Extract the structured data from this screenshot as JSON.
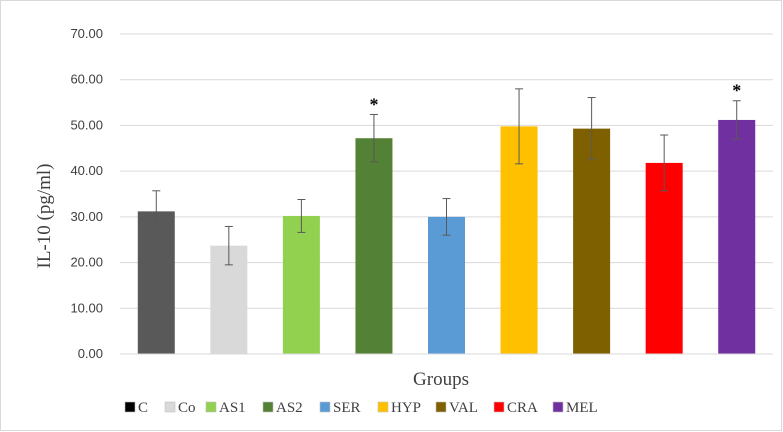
{
  "chart_data": {
    "type": "bar",
    "title": "",
    "xlabel": "Groups",
    "ylabel": "IL-10 (pg/ml)",
    "ylim": [
      0,
      70
    ],
    "yticks": [
      "0.00",
      "10.00",
      "20.00",
      "30.00",
      "40.00",
      "50.00",
      "60.00",
      "70.00"
    ],
    "ytick_values": [
      0,
      10,
      20,
      30,
      40,
      50,
      60,
      70
    ],
    "grid": true,
    "legend_position": "bottom",
    "categories": [
      "C",
      "Co",
      "AS1",
      "AS2",
      "SER",
      "HYP",
      "VAL",
      "CRA",
      "MEL"
    ],
    "values": [
      31.2,
      23.7,
      30.2,
      47.2,
      30.0,
      49.8,
      49.3,
      41.8,
      51.2
    ],
    "errors": [
      4.5,
      4.2,
      3.6,
      5.2,
      4.0,
      8.2,
      6.8,
      6.1,
      4.2
    ],
    "significance": [
      "",
      "",
      "",
      "*",
      "",
      "",
      "",
      "",
      "*"
    ],
    "colors": [
      "#595959",
      "#d9d9d9",
      "#92d050",
      "#538135",
      "#5b9bd5",
      "#ffc000",
      "#7f6000",
      "#ff0000",
      "#7030a0"
    ],
    "legend_colors": [
      "#000000",
      "#d9d9d9",
      "#92d050",
      "#538135",
      "#5b9bd5",
      "#ffc000",
      "#7f6000",
      "#ff0000",
      "#7030a0"
    ]
  }
}
